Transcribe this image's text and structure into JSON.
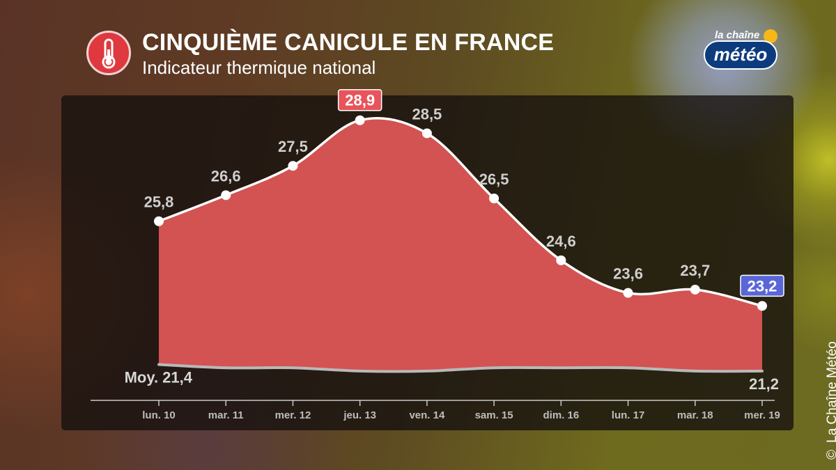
{
  "header": {
    "title": "CINQUIÈME CANICULE EN FRANCE",
    "subtitle": "Indicateur thermique national",
    "icon": "thermometer-icon"
  },
  "logo": {
    "top": "la chaîne",
    "main": "météo"
  },
  "credit": {
    "symbol": "©",
    "text": "La Chaîne Météo"
  },
  "colors": {
    "fill": "#d95555",
    "line": "#ffffff",
    "normal_line": "#b9b9b9",
    "max_badge": "#e8545b",
    "last_badge": "#5a66d8",
    "thermo_bg": "#e0383f"
  },
  "chart_data": {
    "type": "area",
    "categories": [
      "lun. 10",
      "mar. 11",
      "mer. 12",
      "jeu. 13",
      "ven. 14",
      "sam. 15",
      "dim. 16",
      "lun. 17",
      "mar. 18",
      "mer. 19"
    ],
    "series": [
      {
        "values": [
          25.8,
          26.6,
          27.5,
          28.9,
          28.5,
          26.5,
          24.6,
          23.6,
          23.7,
          23.2
        ]
      },
      {
        "values": [
          21.4,
          21.3,
          21.3,
          21.2,
          21.2,
          21.3,
          21.3,
          21.3,
          21.2,
          21.2
        ]
      }
    ],
    "value_labels": [
      "25,8",
      "26,6",
      "27,5",
      "28,9",
      "28,5",
      "26,5",
      "24,6",
      "23,6",
      "23,7",
      "23,2"
    ],
    "normal_labels": {
      "start": "Moy. 21,4",
      "end": "21,2"
    },
    "highlight": {
      "max_index": 3,
      "last_index": 9
    },
    "ylim": [
      20.3,
      29.6
    ],
    "grid": false,
    "legend": "none"
  }
}
